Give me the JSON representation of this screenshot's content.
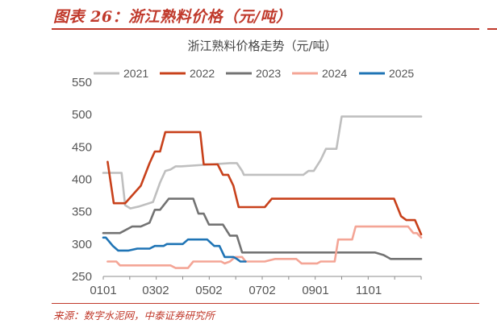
{
  "figure": {
    "title": "图表 26：浙江熟料价格（元/吨）",
    "source": "来源：数字水泥网，中泰证券研究所"
  },
  "chart_data": {
    "type": "line",
    "title": "浙江熟料价格走势（元/吨）",
    "xlabel": "",
    "ylabel": "",
    "ylim": [
      250,
      550
    ],
    "yticks": [
      250,
      300,
      350,
      400,
      450,
      500,
      550
    ],
    "x_domain": [
      1,
      365
    ],
    "xticks": [
      {
        "label": "0101",
        "day": 1
      },
      {
        "label": "0302",
        "day": 61
      },
      {
        "label": "0502",
        "day": 122
      },
      {
        "label": "0702",
        "day": 183
      },
      {
        "label": "0901",
        "day": 244
      },
      {
        "label": "1101",
        "day": 305
      }
    ],
    "grid": false,
    "legend": "top",
    "series": [
      {
        "name": "2021",
        "color": "#bfbfbf",
        "points": [
          [
            1,
            410
          ],
          [
            22,
            410
          ],
          [
            26,
            360
          ],
          [
            32,
            355
          ],
          [
            42,
            358
          ],
          [
            58,
            365
          ],
          [
            66,
            395
          ],
          [
            72,
            413
          ],
          [
            78,
            415
          ],
          [
            84,
            420
          ],
          [
            90,
            420
          ],
          [
            146,
            425
          ],
          [
            154,
            425
          ],
          [
            160,
            413
          ],
          [
            162,
            407
          ],
          [
            230,
            407
          ],
          [
            236,
            413
          ],
          [
            242,
            413
          ],
          [
            250,
            430
          ],
          [
            256,
            447
          ],
          [
            268,
            447
          ],
          [
            274,
            497
          ],
          [
            365,
            497
          ]
        ]
      },
      {
        "name": "2022",
        "color": "#c8411b",
        "points": [
          [
            6,
            427
          ],
          [
            13,
            363
          ],
          [
            26,
            363
          ],
          [
            44,
            390
          ],
          [
            54,
            425
          ],
          [
            60,
            443
          ],
          [
            66,
            443
          ],
          [
            72,
            473
          ],
          [
            112,
            473
          ],
          [
            116,
            423
          ],
          [
            132,
            423
          ],
          [
            138,
            407
          ],
          [
            144,
            407
          ],
          [
            150,
            390
          ],
          [
            156,
            357
          ],
          [
            186,
            357
          ],
          [
            194,
            370
          ],
          [
            334,
            370
          ],
          [
            342,
            343
          ],
          [
            348,
            337
          ],
          [
            358,
            337
          ],
          [
            365,
            315
          ]
        ]
      },
      {
        "name": "2023",
        "color": "#737373",
        "points": [
          [
            1,
            317
          ],
          [
            20,
            317
          ],
          [
            34,
            327
          ],
          [
            44,
            327
          ],
          [
            54,
            333
          ],
          [
            60,
            353
          ],
          [
            66,
            353
          ],
          [
            76,
            370
          ],
          [
            104,
            370
          ],
          [
            110,
            347
          ],
          [
            116,
            347
          ],
          [
            122,
            330
          ],
          [
            138,
            330
          ],
          [
            146,
            313
          ],
          [
            154,
            313
          ],
          [
            160,
            287
          ],
          [
            312,
            287
          ],
          [
            322,
            283
          ],
          [
            330,
            277
          ],
          [
            365,
            277
          ]
        ]
      },
      {
        "name": "2024",
        "color": "#f4a596",
        "points": [
          [
            6,
            273
          ],
          [
            16,
            273
          ],
          [
            20,
            267
          ],
          [
            78,
            267
          ],
          [
            84,
            263
          ],
          [
            98,
            263
          ],
          [
            104,
            273
          ],
          [
            136,
            273
          ],
          [
            140,
            270
          ],
          [
            146,
            273
          ],
          [
            152,
            280
          ],
          [
            160,
            280
          ],
          [
            164,
            273
          ],
          [
            186,
            273
          ],
          [
            198,
            277
          ],
          [
            222,
            277
          ],
          [
            228,
            270
          ],
          [
            246,
            270
          ],
          [
            250,
            273
          ],
          [
            266,
            273
          ],
          [
            270,
            307
          ],
          [
            286,
            307
          ],
          [
            290,
            327
          ],
          [
            350,
            327
          ],
          [
            356,
            317
          ],
          [
            360,
            317
          ],
          [
            365,
            310
          ]
        ]
      },
      {
        "name": "2025",
        "color": "#1f74b5",
        "points": [
          [
            1,
            310
          ],
          [
            4,
            310
          ],
          [
            12,
            297
          ],
          [
            18,
            290
          ],
          [
            30,
            290
          ],
          [
            40,
            293
          ],
          [
            54,
            293
          ],
          [
            60,
            297
          ],
          [
            70,
            297
          ],
          [
            74,
            300
          ],
          [
            92,
            300
          ],
          [
            98,
            307
          ],
          [
            120,
            307
          ],
          [
            128,
            297
          ],
          [
            134,
            297
          ],
          [
            140,
            280
          ],
          [
            150,
            280
          ],
          [
            154,
            277
          ],
          [
            158,
            273
          ],
          [
            164,
            273
          ]
        ]
      }
    ]
  }
}
